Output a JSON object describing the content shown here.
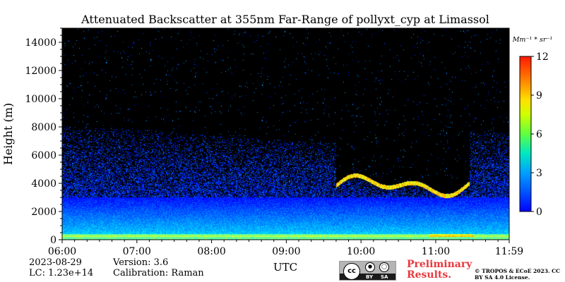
{
  "chart_data": {
    "type": "heatmap",
    "title": "Attenuated Backscatter at 355nm Far-Range of pollyxt_cyp at Limassol",
    "xlabel": "UTC",
    "ylabel": "Height (m)",
    "x_tick_labels": [
      "06:00",
      "07:00",
      "08:00",
      "09:00",
      "10:00",
      "11:00",
      "11:59"
    ],
    "x_range": [
      "06:00",
      "11:59"
    ],
    "y_ticks": [
      0,
      2000,
      4000,
      6000,
      8000,
      10000,
      12000,
      14000
    ],
    "y_range": [
      0,
      15000
    ],
    "colorbar": {
      "unit": "Mm⁻¹ * sr⁻¹",
      "ticks": [
        0,
        3,
        6,
        9,
        12
      ],
      "range": [
        0,
        12
      ],
      "colormap": "jet"
    },
    "background_color": "#000000",
    "features": {
      "surface_layer_top_m": 400,
      "aerosol_layer_top_m": 3000,
      "noise_limit_m": 8500,
      "cloud_layer_start_time": "09:40",
      "cloud_layer_end_time": "11:20",
      "cloud_base_range_m": [
        3000,
        4800
      ]
    }
  },
  "footer": {
    "date": "2023-08-29",
    "lc": "LC: 1.23e+14",
    "version": "Version: 3.6",
    "calibration": "Calibration: Raman",
    "license_badge": {
      "by": "BY",
      "sa": "SA",
      "cc": "cc"
    },
    "preliminary": "Preliminary Results.",
    "copyright": "© TROPOS & ECoE 2023. CC BY SA 4.0 License."
  }
}
